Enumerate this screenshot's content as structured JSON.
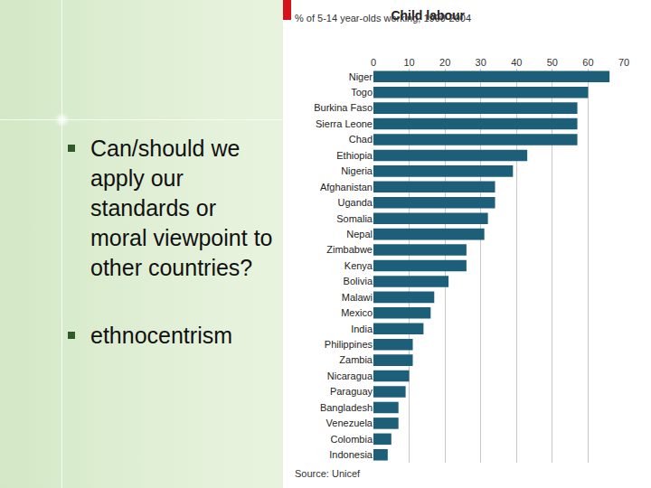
{
  "chart_data": {
    "type": "bar",
    "orientation": "horizontal",
    "title": "Child labour",
    "subtitle": "% of 5-14 year-olds working, 1999-2004",
    "source": "Source: Unicef",
    "categories": [
      "Niger",
      "Togo",
      "Burkina Faso",
      "Sierra Leone",
      "Chad",
      "Ethiopia",
      "Nigeria",
      "Afghanistan",
      "Uganda",
      "Somalia",
      "Nepal",
      "Zimbabwe",
      "Kenya",
      "Bolivia",
      "Malawi",
      "Mexico",
      "India",
      "Philippines",
      "Zambia",
      "Nicaragua",
      "Paraguay",
      "Bangladesh",
      "Venezuela",
      "Colombia",
      "Indonesia"
    ],
    "values": [
      66,
      60,
      57,
      57,
      57,
      43,
      39,
      34,
      34,
      32,
      31,
      26,
      26,
      21,
      17,
      16,
      14,
      11,
      11,
      10,
      9,
      7,
      7,
      5,
      4
    ],
    "color": "#1d5f78",
    "xlim": [
      0,
      70
    ],
    "xticks": [
      0,
      10,
      20,
      30,
      40,
      50,
      60,
      70
    ],
    "grid": true
  },
  "bullets": [
    "Can/should we apply our standards or moral viewpoint to other countries?",
    "ethnocentrism"
  ]
}
